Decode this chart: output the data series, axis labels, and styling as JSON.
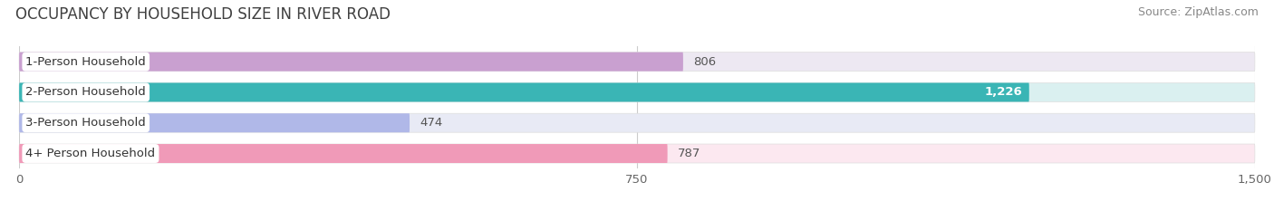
{
  "title": "OCCUPANCY BY HOUSEHOLD SIZE IN RIVER ROAD",
  "source": "Source: ZipAtlas.com",
  "categories": [
    "1-Person Household",
    "2-Person Household",
    "3-Person Household",
    "4+ Person Household"
  ],
  "values": [
    806,
    1226,
    474,
    787
  ],
  "bar_colors": [
    "#c9a0d0",
    "#3ab5b5",
    "#b0b8e8",
    "#f09ab8"
  ],
  "bar_bg_colors": [
    "#ede8f2",
    "#daf0f0",
    "#e8eaf5",
    "#fce8f0"
  ],
  "xlim": [
    0,
    1500
  ],
  "xticks": [
    0,
    750,
    1500
  ],
  "background_color": "#ffffff",
  "title_fontsize": 12,
  "source_fontsize": 9,
  "label_fontsize": 9.5,
  "value_fontsize": 9.5,
  "bar_height": 0.62,
  "max_val_label": 1226
}
